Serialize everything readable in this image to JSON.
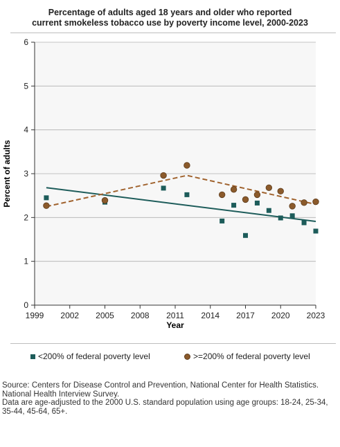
{
  "title_lines": [
    "Percentage of adults aged 18 years and older who reported",
    "current smokeless tobacco use by poverty income level, 2000-2023"
  ],
  "footer": {
    "source": "Source: Centers for Disease Control and Prevention, National Center for Health Statistics. National Health Interview Survey.",
    "note": "Data are age-adjusted to the 2000 U.S. standard population using age groups: 18-24, 25-34, 35-44, 45-64, 65+."
  },
  "colors": {
    "low_income": "#1d5c5a",
    "high_income": "#8b5a2b",
    "high_income_trend": "#a0622d",
    "plot_bg": "#f7f7f7",
    "grid": "#b0b0b0"
  },
  "chart_data": {
    "type": "scatter",
    "title": "Percentage of adults aged 18 years and older who reported current smokeless tobacco use by poverty income level, 2000-2023",
    "xlabel": "Year",
    "ylabel": "Percent of adults",
    "xlim": [
      1999,
      2023
    ],
    "ylim": [
      0,
      6
    ],
    "x_ticks": [
      "1999",
      "2002",
      "2005",
      "2008",
      "2011",
      "2014",
      "2017",
      "2020",
      "2023"
    ],
    "y_ticks": [
      "0",
      "1",
      "2",
      "3",
      "4",
      "5",
      "6"
    ],
    "grid": true,
    "legend_position": "bottom",
    "series": [
      {
        "name": "<200% of federal poverty level",
        "marker": "square",
        "points": [
          {
            "x": 2000,
            "y": 2.45
          },
          {
            "x": 2005,
            "y": 2.35
          },
          {
            "x": 2010,
            "y": 2.67
          },
          {
            "x": 2012,
            "y": 2.52
          },
          {
            "x": 2015,
            "y": 1.92
          },
          {
            "x": 2016,
            "y": 2.28
          },
          {
            "x": 2017,
            "y": 1.59
          },
          {
            "x": 2018,
            "y": 2.33
          },
          {
            "x": 2019,
            "y": 2.16
          },
          {
            "x": 2020,
            "y": 1.99
          },
          {
            "x": 2021,
            "y": 2.04
          },
          {
            "x": 2022,
            "y": 1.88
          },
          {
            "x": 2023,
            "y": 1.69
          }
        ],
        "trend": {
          "style": "solid",
          "points": [
            {
              "x": 2000,
              "y": 2.68
            },
            {
              "x": 2023,
              "y": 1.91
            }
          ]
        }
      },
      {
        "name": ">=200% of federal poverty level",
        "marker": "circle",
        "points": [
          {
            "x": 2000,
            "y": 2.27
          },
          {
            "x": 2005,
            "y": 2.39
          },
          {
            "x": 2010,
            "y": 2.96
          },
          {
            "x": 2012,
            "y": 3.19
          },
          {
            "x": 2015,
            "y": 2.52
          },
          {
            "x": 2016,
            "y": 2.64
          },
          {
            "x": 2017,
            "y": 2.41
          },
          {
            "x": 2018,
            "y": 2.52
          },
          {
            "x": 2019,
            "y": 2.68
          },
          {
            "x": 2020,
            "y": 2.6
          },
          {
            "x": 2021,
            "y": 2.26
          },
          {
            "x": 2022,
            "y": 2.34
          },
          {
            "x": 2023,
            "y": 2.36
          }
        ],
        "trend": {
          "style": "dashed",
          "points": [
            {
              "x": 2000,
              "y": 2.25
            },
            {
              "x": 2012,
              "y": 2.96
            },
            {
              "x": 2023,
              "y": 2.3
            }
          ]
        }
      }
    ]
  }
}
